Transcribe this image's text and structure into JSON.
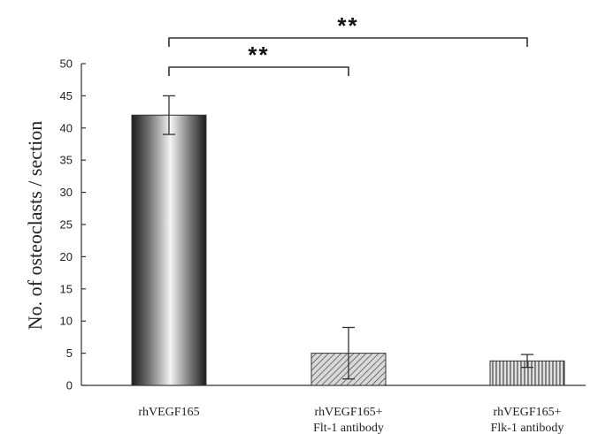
{
  "chart_data": {
    "type": "bar",
    "ylabel": "No. of osteoclasts / section",
    "ylim": [
      0,
      50
    ],
    "yticks": [
      0,
      5,
      10,
      15,
      20,
      25,
      30,
      35,
      40,
      45,
      50
    ],
    "categories": [
      {
        "lines": [
          "rhVEGF165"
        ],
        "value": 42,
        "error": 3,
        "fill": "gradient"
      },
      {
        "lines": [
          "rhVEGF165+",
          "Flt-1 antibody"
        ],
        "value": 5,
        "error": 4,
        "fill": "diagonal-hatch"
      },
      {
        "lines": [
          "rhVEGF165+",
          "Flk-1 antibody"
        ],
        "value": 3.8,
        "error": 1,
        "fill": "vertical-hatch"
      }
    ],
    "significance": [
      {
        "from": 0,
        "to": 1,
        "label": "**"
      },
      {
        "from": 0,
        "to": 2,
        "label": "**"
      }
    ],
    "grid": false
  }
}
